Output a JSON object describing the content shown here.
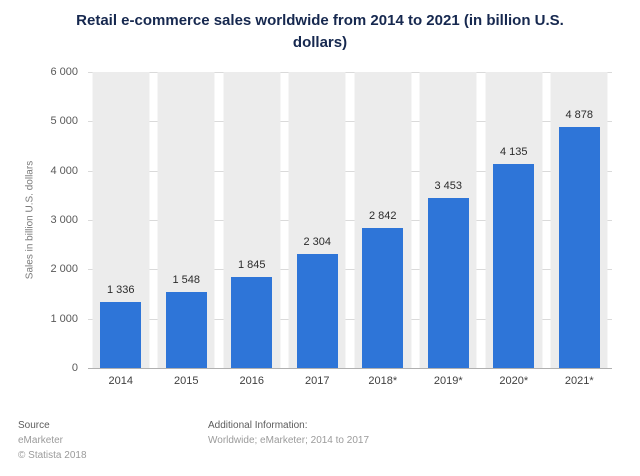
{
  "title": "Retail e-commerce sales worldwide from 2014 to 2021 (in billion U.S. dollars)",
  "chart_data": {
    "type": "bar",
    "title": "Retail e-commerce sales worldwide from 2014 to 2021 (in billion U.S. dollars)",
    "categories": [
      "2014",
      "2015",
      "2016",
      "2017",
      "2018*",
      "2019*",
      "2020*",
      "2021*"
    ],
    "values": [
      1336,
      1548,
      1845,
      2304,
      2842,
      3453,
      4135,
      4878
    ],
    "value_labels": [
      "1 336",
      "1 548",
      "1 845",
      "2 304",
      "2 842",
      "3 453",
      "4 135",
      "4 878"
    ],
    "xlabel": "",
    "ylabel": "Sales in billion U.S. dollars",
    "ylim": [
      0,
      6000
    ],
    "yticks": [
      0,
      1000,
      2000,
      3000,
      4000,
      5000,
      6000
    ],
    "ytick_labels": [
      "0",
      "1 000",
      "2 000",
      "3 000",
      "4 000",
      "5 000",
      "6 000"
    ],
    "grid": true,
    "legend": false,
    "bar_color": "#2e75d8",
    "band_color": "#ececec"
  },
  "footer": {
    "source_label": "Source",
    "source_line1": "eMarketer",
    "source_line2": "© Statista 2018",
    "additional_label": "Additional Information:",
    "additional_text": "Worldwide; eMarketer; 2014 to 2017"
  }
}
